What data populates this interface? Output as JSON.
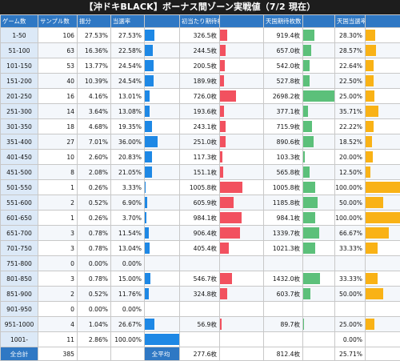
{
  "title": "【沖ドキBLACK】ボーナス間ゾーン実戦値（7/2 現在）",
  "headers": [
    "ゲーム数",
    "サンプル数",
    "振分",
    "当選率",
    "",
    "初当たり期待枚数",
    "",
    "天国期待枚数",
    "",
    "天国当選率",
    ""
  ],
  "rows": [
    {
      "range": "1-50",
      "samples": "106",
      "share": "27.53%",
      "rate": "27.53%",
      "rate_v": 27.53,
      "first": "326.5枚",
      "first_v": 326.5,
      "heaven": "919.4枚",
      "heaven_v": 919.4,
      "hrate": "28.30%",
      "hrate_v": 28.3
    },
    {
      "range": "51-100",
      "samples": "63",
      "share": "16.36%",
      "rate": "22.58%",
      "rate_v": 22.58,
      "first": "244.5枚",
      "first_v": 244.5,
      "heaven": "657.0枚",
      "heaven_v": 657.0,
      "hrate": "28.57%",
      "hrate_v": 28.57
    },
    {
      "range": "101-150",
      "samples": "53",
      "share": "13.77%",
      "rate": "24.54%",
      "rate_v": 24.54,
      "first": "200.5枚",
      "first_v": 200.5,
      "heaven": "542.0枚",
      "heaven_v": 542.0,
      "hrate": "22.64%",
      "hrate_v": 22.64
    },
    {
      "range": "151-200",
      "samples": "40",
      "share": "10.39%",
      "rate": "24.54%",
      "rate_v": 24.54,
      "first": "189.9枚",
      "first_v": 189.9,
      "heaven": "527.8枚",
      "heaven_v": 527.8,
      "hrate": "22.50%",
      "hrate_v": 22.5
    },
    {
      "range": "201-250",
      "samples": "16",
      "share": "4.16%",
      "rate": "13.01%",
      "rate_v": 13.01,
      "first": "726.0枚",
      "first_v": 726.0,
      "heaven": "2698.2枚",
      "heaven_v": 2698.2,
      "hrate": "25.00%",
      "hrate_v": 25.0
    },
    {
      "range": "251-300",
      "samples": "14",
      "share": "3.64%",
      "rate": "13.08%",
      "rate_v": 13.08,
      "first": "193.6枚",
      "first_v": 193.6,
      "heaven": "377.1枚",
      "heaven_v": 377.1,
      "hrate": "35.71%",
      "hrate_v": 35.71
    },
    {
      "range": "301-350",
      "samples": "18",
      "share": "4.68%",
      "rate": "19.35%",
      "rate_v": 19.35,
      "first": "243.1枚",
      "first_v": 243.1,
      "heaven": "715.9枚",
      "heaven_v": 715.9,
      "hrate": "22.22%",
      "hrate_v": 22.22
    },
    {
      "range": "351-400",
      "samples": "27",
      "share": "7.01%",
      "rate": "36.00%",
      "rate_v": 36.0,
      "first": "251.0枚",
      "first_v": 251.0,
      "heaven": "890.6枚",
      "heaven_v": 890.6,
      "hrate": "18.52%",
      "hrate_v": 18.52
    },
    {
      "range": "401-450",
      "samples": "10",
      "share": "2.60%",
      "rate": "20.83%",
      "rate_v": 20.83,
      "first": "117.3枚",
      "first_v": 117.3,
      "heaven": "103.3枚",
      "heaven_v": 103.3,
      "hrate": "20.00%",
      "hrate_v": 20.0
    },
    {
      "range": "451-500",
      "samples": "8",
      "share": "2.08%",
      "rate": "21.05%",
      "rate_v": 21.05,
      "first": "151.1枚",
      "first_v": 151.1,
      "heaven": "565.8枚",
      "heaven_v": 565.8,
      "hrate": "12.50%",
      "hrate_v": 12.5
    },
    {
      "range": "501-550",
      "samples": "1",
      "share": "0.26%",
      "rate": "3.33%",
      "rate_v": 3.33,
      "first": "1005.8枚",
      "first_v": 1005.8,
      "heaven": "1005.8枚",
      "heaven_v": 1005.8,
      "hrate": "100.00%",
      "hrate_v": 100.0
    },
    {
      "range": "551-600",
      "samples": "2",
      "share": "0.52%",
      "rate": "6.90%",
      "rate_v": 6.9,
      "first": "605.9枚",
      "first_v": 605.9,
      "heaven": "1185.8枚",
      "heaven_v": 1185.8,
      "hrate": "50.00%",
      "hrate_v": 50.0
    },
    {
      "range": "601-650",
      "samples": "1",
      "share": "0.26%",
      "rate": "3.70%",
      "rate_v": 3.7,
      "first": "984.1枚",
      "first_v": 984.1,
      "heaven": "984.1枚",
      "heaven_v": 984.1,
      "hrate": "100.00%",
      "hrate_v": 100.0
    },
    {
      "range": "651-700",
      "samples": "3",
      "share": "0.78%",
      "rate": "11.54%",
      "rate_v": 11.54,
      "first": "906.4枚",
      "first_v": 906.4,
      "heaven": "1339.7枚",
      "heaven_v": 1339.7,
      "hrate": "66.67%",
      "hrate_v": 66.67
    },
    {
      "range": "701-750",
      "samples": "3",
      "share": "0.78%",
      "rate": "13.04%",
      "rate_v": 13.04,
      "first": "405.4枚",
      "first_v": 405.4,
      "heaven": "1021.3枚",
      "heaven_v": 1021.3,
      "hrate": "33.33%",
      "hrate_v": 33.33
    },
    {
      "range": "751-800",
      "samples": "0",
      "share": "0.00%",
      "rate": "0.00%",
      "rate_v": 0,
      "first": "",
      "first_v": 0,
      "heaven": "",
      "heaven_v": 0,
      "hrate": "",
      "hrate_v": 0
    },
    {
      "range": "801-850",
      "samples": "3",
      "share": "0.78%",
      "rate": "15.00%",
      "rate_v": 15.0,
      "first": "546.7枚",
      "first_v": 546.7,
      "heaven": "1432.0枚",
      "heaven_v": 1432.0,
      "hrate": "33.33%",
      "hrate_v": 33.33
    },
    {
      "range": "851-900",
      "samples": "2",
      "share": "0.52%",
      "rate": "11.76%",
      "rate_v": 11.76,
      "first": "324.8枚",
      "first_v": 324.8,
      "heaven": "603.7枚",
      "heaven_v": 603.7,
      "hrate": "50.00%",
      "hrate_v": 50.0
    },
    {
      "range": "901-950",
      "samples": "0",
      "share": "0.00%",
      "rate": "0.00%",
      "rate_v": 0,
      "first": "",
      "first_v": 0,
      "heaven": "",
      "heaven_v": 0,
      "hrate": "",
      "hrate_v": 0
    },
    {
      "range": "951-1000",
      "samples": "4",
      "share": "1.04%",
      "rate": "26.67%",
      "rate_v": 26.67,
      "first": "56.9枚",
      "first_v": 56.9,
      "heaven": "89.7枚",
      "heaven_v": 89.7,
      "hrate": "25.00%",
      "hrate_v": 25.0
    },
    {
      "range": "1001-",
      "samples": "11",
      "share": "2.86%",
      "rate": "100.00%",
      "rate_v": 100.0,
      "first": "",
      "first_v": 0,
      "heaven": "",
      "heaven_v": 0,
      "hrate": "0.00%",
      "hrate_v": 0
    }
  ],
  "totals": {
    "label": "全合計",
    "samples": "385",
    "avg_label": "全平均",
    "first": "277.6枚",
    "heaven": "812.4枚",
    "hrate": "25.71%"
  },
  "scales": {
    "rate_max": 36.0,
    "first_max": 1005.8,
    "heaven_max": 2698.2,
    "hrate_max": 100.0
  },
  "colors": {
    "header": "#2f78c4",
    "rate_bar": "#1e88e5",
    "first_bar": "#f2515f",
    "heaven_bar": "#5cc07a",
    "hrate_bar": "#f9b216"
  }
}
